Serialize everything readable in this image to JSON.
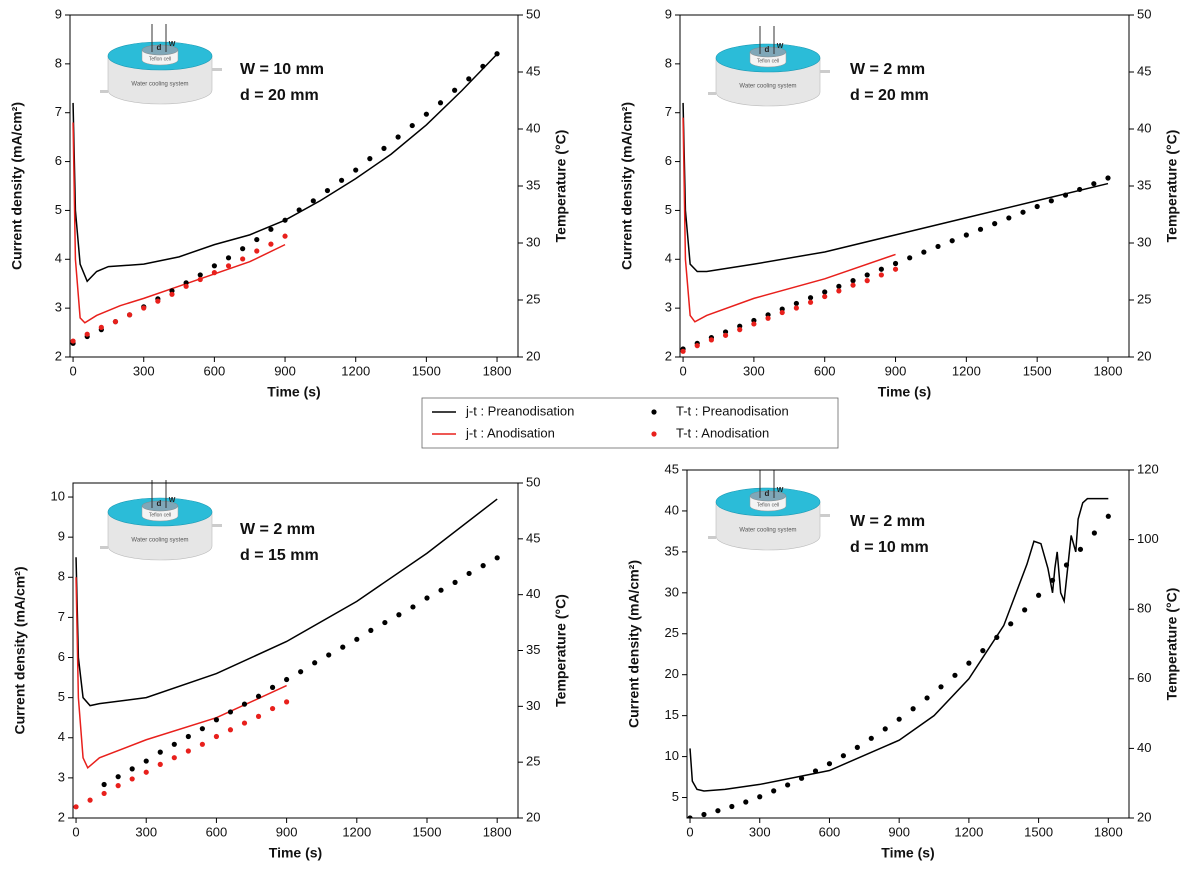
{
  "legend_position": "center",
  "inset": {
    "cooling": "Water cooling system",
    "cell": "Teflon cell",
    "d": "d",
    "w": "W"
  },
  "chart_data": [
    {
      "type": "line",
      "xlabel": "Time (s)",
      "ylabel": "Current density (mA/cm²)",
      "y2label": "Temperature (°C)",
      "annotations": [
        "W = 10 mm",
        "d = 20 mm"
      ],
      "xlim": [
        -13,
        1889
      ],
      "xticks": [
        0,
        300,
        600,
        900,
        1200,
        1500,
        1800
      ],
      "ylim": [
        2,
        9
      ],
      "yticks": [
        2,
        3,
        4,
        5,
        6,
        7,
        8,
        9
      ],
      "y2lim": [
        20,
        50
      ],
      "y2ticks": [
        20,
        25,
        30,
        35,
        40,
        45,
        50
      ],
      "series": [
        {
          "name": "j-t : Preanodisation",
          "color": "#000000",
          "style": "line",
          "x": [
            0,
            10,
            30,
            60,
            100,
            150,
            300,
            450,
            600,
            750,
            900,
            1050,
            1200,
            1350,
            1500,
            1650,
            1800
          ],
          "values": [
            7.2,
            5.0,
            3.9,
            3.55,
            3.75,
            3.85,
            3.9,
            4.05,
            4.3,
            4.5,
            4.8,
            5.2,
            5.65,
            6.15,
            6.75,
            7.45,
            8.2
          ]
        },
        {
          "name": "j-t : Anodisation",
          "color": "#e8201c",
          "style": "line",
          "x": [
            0,
            10,
            30,
            50,
            100,
            200,
            300,
            450,
            600,
            750,
            900
          ],
          "values": [
            6.8,
            4.0,
            2.8,
            2.7,
            2.85,
            3.05,
            3.2,
            3.45,
            3.7,
            3.95,
            4.3
          ]
        },
        {
          "name": "T-t : Preanodisation",
          "color": "#000000",
          "style": "dots",
          "axis": "y2",
          "x": [
            0,
            60,
            120,
            180,
            240,
            300,
            360,
            420,
            480,
            540,
            600,
            660,
            720,
            780,
            840,
            900,
            960,
            1020,
            1080,
            1140,
            1200,
            1260,
            1320,
            1380,
            1440,
            1500,
            1560,
            1620,
            1680,
            1740,
            1800
          ],
          "values": [
            21.2,
            21.8,
            22.4,
            23.1,
            23.7,
            24.4,
            25.1,
            25.8,
            26.5,
            27.2,
            28.0,
            28.7,
            29.5,
            30.3,
            31.2,
            32.0,
            32.9,
            33.7,
            34.6,
            35.5,
            36.4,
            37.4,
            38.3,
            39.3,
            40.3,
            41.3,
            42.3,
            43.4,
            44.4,
            45.5,
            46.6
          ]
        },
        {
          "name": "T-t : Anodisation",
          "color": "#e8201c",
          "style": "dots",
          "axis": "y2",
          "x": [
            0,
            60,
            120,
            180,
            240,
            300,
            360,
            420,
            480,
            540,
            600,
            660,
            720,
            780,
            840,
            900
          ],
          "values": [
            21.4,
            22.0,
            22.6,
            23.1,
            23.7,
            24.3,
            24.9,
            25.5,
            26.2,
            26.8,
            27.4,
            28.0,
            28.6,
            29.3,
            29.9,
            30.6
          ]
        }
      ]
    },
    {
      "type": "line",
      "xlabel": "Time (s)",
      "ylabel": "Current density (mA/cm²)",
      "y2label": "Temperature (°C)",
      "annotations": [
        "W = 2 mm",
        "d = 20 mm"
      ],
      "xlim": [
        -13,
        1889
      ],
      "xticks": [
        0,
        300,
        600,
        900,
        1200,
        1500,
        1800
      ],
      "ylim": [
        2,
        9
      ],
      "yticks": [
        2,
        3,
        4,
        5,
        6,
        7,
        8,
        9
      ],
      "y2lim": [
        20,
        50
      ],
      "y2ticks": [
        20,
        25,
        30,
        35,
        40,
        45,
        50
      ],
      "series": [
        {
          "name": "j-t : Preanodisation",
          "color": "#000000",
          "style": "line",
          "x": [
            0,
            10,
            30,
            60,
            100,
            300,
            600,
            900,
            1200,
            1500,
            1800
          ],
          "values": [
            7.2,
            5.0,
            3.9,
            3.75,
            3.75,
            3.9,
            4.15,
            4.5,
            4.85,
            5.2,
            5.55
          ]
        },
        {
          "name": "j-t : Anodisation",
          "color": "#e8201c",
          "style": "line",
          "x": [
            0,
            10,
            30,
            50,
            100,
            300,
            600,
            900
          ],
          "values": [
            6.9,
            4.0,
            2.85,
            2.72,
            2.85,
            3.2,
            3.6,
            4.1
          ]
        },
        {
          "name": "T-t : Preanodisation",
          "color": "#000000",
          "style": "dots",
          "axis": "y2",
          "x": [
            0,
            60,
            120,
            180,
            240,
            300,
            360,
            420,
            480,
            540,
            600,
            660,
            720,
            780,
            840,
            900,
            960,
            1020,
            1080,
            1140,
            1200,
            1260,
            1320,
            1380,
            1440,
            1500,
            1560,
            1620,
            1680,
            1740,
            1800
          ],
          "values": [
            20.7,
            21.2,
            21.7,
            22.2,
            22.7,
            23.2,
            23.7,
            24.2,
            24.7,
            25.2,
            25.7,
            26.2,
            26.7,
            27.2,
            27.7,
            28.2,
            28.7,
            29.2,
            29.7,
            30.2,
            30.7,
            31.2,
            31.7,
            32.2,
            32.7,
            33.2,
            33.7,
            34.2,
            34.7,
            35.2,
            35.7
          ]
        },
        {
          "name": "T-t : Anodisation",
          "color": "#e8201c",
          "style": "dots",
          "axis": "y2",
          "x": [
            0,
            60,
            120,
            180,
            240,
            300,
            360,
            420,
            480,
            540,
            600,
            660,
            720,
            780,
            840,
            900
          ],
          "values": [
            20.5,
            21.0,
            21.5,
            21.9,
            22.4,
            22.9,
            23.4,
            23.9,
            24.3,
            24.8,
            25.3,
            25.8,
            26.3,
            26.7,
            27.2,
            27.7
          ]
        }
      ]
    },
    {
      "type": "line",
      "xlabel": "Time (s)",
      "ylabel": "Current density (mA/cm²)",
      "y2label": "Temperature (°C)",
      "annotations": [
        "W = 2 mm",
        "d = 15 mm"
      ],
      "xlim": [
        -13,
        1889
      ],
      "xticks": [
        0,
        300,
        600,
        900,
        1200,
        1500,
        1800
      ],
      "ylim": [
        2,
        10.35
      ],
      "yticks": [
        2,
        3,
        4,
        5,
        6,
        7,
        8,
        9,
        10
      ],
      "y2lim": [
        20,
        50
      ],
      "y2ticks": [
        20,
        25,
        30,
        35,
        40,
        45,
        50
      ],
      "series": [
        {
          "name": "j-t : Preanodisation",
          "color": "#000000",
          "style": "line",
          "x": [
            0,
            10,
            30,
            60,
            100,
            300,
            600,
            900,
            1200,
            1500,
            1800
          ],
          "values": [
            8.5,
            6.0,
            5.0,
            4.8,
            4.85,
            5.0,
            5.6,
            6.4,
            7.4,
            8.6,
            9.95
          ]
        },
        {
          "name": "j-t : Anodisation",
          "color": "#e8201c",
          "style": "line",
          "x": [
            0,
            10,
            30,
            50,
            100,
            300,
            600,
            900
          ],
          "values": [
            8.0,
            5.0,
            3.5,
            3.25,
            3.5,
            3.95,
            4.5,
            5.3
          ]
        },
        {
          "name": "T-t : Preanodisation",
          "color": "#000000",
          "style": "dots",
          "axis": "y2",
          "x": [
            120,
            180,
            240,
            300,
            360,
            420,
            480,
            540,
            600,
            660,
            720,
            780,
            840,
            900,
            960,
            1020,
            1080,
            1140,
            1200,
            1260,
            1320,
            1380,
            1440,
            1500,
            1560,
            1620,
            1680,
            1740,
            1800
          ],
          "values": [
            23.0,
            23.7,
            24.4,
            25.1,
            25.9,
            26.6,
            27.3,
            28.0,
            28.8,
            29.5,
            30.2,
            30.9,
            31.7,
            32.4,
            33.1,
            33.9,
            34.6,
            35.3,
            36.0,
            36.8,
            37.5,
            38.2,
            38.9,
            39.7,
            40.4,
            41.1,
            41.9,
            42.6,
            43.3
          ]
        },
        {
          "name": "T-t : Anodisation",
          "color": "#e8201c",
          "style": "dots",
          "axis": "y2",
          "x": [
            0,
            60,
            120,
            180,
            240,
            300,
            360,
            420,
            480,
            540,
            600,
            660,
            720,
            780,
            840,
            900
          ],
          "values": [
            21.0,
            21.6,
            22.2,
            22.9,
            23.5,
            24.1,
            24.8,
            25.4,
            26.0,
            26.6,
            27.3,
            27.9,
            28.5,
            29.1,
            29.8,
            30.4
          ]
        }
      ]
    },
    {
      "type": "line",
      "xlabel": "Time (s)",
      "ylabel": "Current density (mA/cm²)",
      "y2label": "Temperature (°C)",
      "annotations": [
        "W = 2 mm",
        "d = 10 mm"
      ],
      "xlim": [
        -13,
        1889
      ],
      "xticks": [
        0,
        300,
        600,
        900,
        1200,
        1500,
        1800
      ],
      "ylim": [
        2.5,
        45
      ],
      "yticks": [
        5,
        10,
        15,
        20,
        25,
        30,
        35,
        40,
        45
      ],
      "y2lim": [
        20,
        120
      ],
      "y2ticks": [
        20,
        40,
        60,
        80,
        100,
        120
      ],
      "series": [
        {
          "name": "j-t : Preanodisation",
          "color": "#000000",
          "style": "line",
          "x": [
            0,
            10,
            30,
            60,
            150,
            300,
            600,
            900,
            1050,
            1200,
            1350,
            1450,
            1480,
            1510,
            1540,
            1560,
            1570,
            1580,
            1595,
            1610,
            1625,
            1640,
            1660,
            1670,
            1690,
            1710,
            1800
          ],
          "values": [
            11,
            7,
            6,
            5.8,
            6,
            6.6,
            8.3,
            12,
            15,
            19.5,
            26,
            33.5,
            36.3,
            36,
            33,
            30,
            33,
            35,
            30,
            29,
            33,
            37,
            35,
            39,
            41,
            41.5,
            41.5
          ]
        },
        {
          "name": "T-t : Preanodisation",
          "color": "#000000",
          "style": "dots",
          "axis": "y2",
          "x": [
            0,
            60,
            120,
            180,
            240,
            300,
            360,
            420,
            480,
            540,
            600,
            660,
            720,
            780,
            840,
            900,
            960,
            1020,
            1080,
            1140,
            1200,
            1260,
            1320,
            1380,
            1440,
            1500,
            1560,
            1620,
            1680,
            1740,
            1800
          ],
          "values": [
            20,
            21.0,
            22.1,
            23.3,
            24.6,
            26.1,
            27.8,
            29.5,
            31.4,
            33.5,
            35.6,
            37.9,
            40.3,
            42.9,
            45.6,
            48.4,
            51.4,
            54.5,
            57.7,
            61.0,
            64.5,
            68.1,
            71.9,
            75.8,
            79.8,
            84.0,
            88.3,
            92.7,
            97.2,
            101.9,
            106.7
          ]
        }
      ]
    }
  ]
}
